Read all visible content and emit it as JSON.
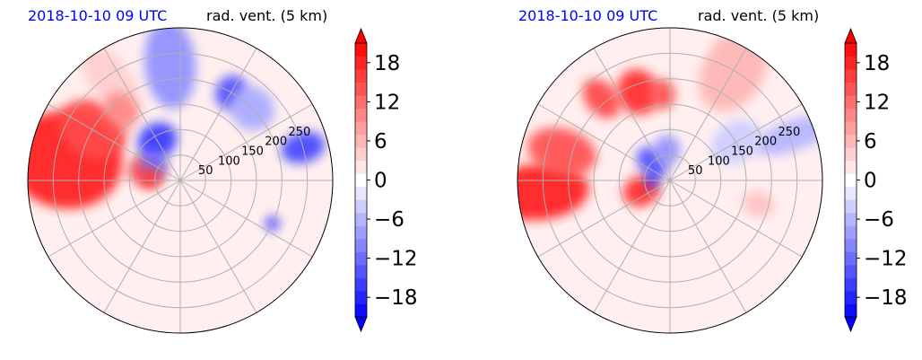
{
  "chart_data": [
    {
      "type": "heatmap",
      "projection": "polar",
      "title_left": "2018-10-10 09 UTC",
      "title_right": "rad. vent. (5 km)",
      "radial_ticks": [
        "50",
        "100",
        "150",
        "200",
        "250"
      ],
      "radial_tick_values": [
        50,
        100,
        150,
        200,
        250
      ],
      "rmax": 300,
      "grid": true,
      "colorbar": {
        "ticks": [
          "18",
          "12",
          "6",
          "0",
          "−6",
          "−12",
          "−18"
        ],
        "tick_values": [
          18,
          12,
          6,
          0,
          -6,
          -12,
          -18
        ],
        "vmin": -21,
        "vmax": 21,
        "extend": "both",
        "cmap": "bwr"
      },
      "fields": [
        {
          "r": 230,
          "theta": 170,
          "rw": 95,
          "tw": 28,
          "v": 18
        },
        {
          "r": 200,
          "theta": 150,
          "rw": 55,
          "tw": 20,
          "v": 15
        },
        {
          "r": 70,
          "theta": 165,
          "rw": 30,
          "tw": 30,
          "v": 14
        },
        {
          "r": 240,
          "theta": 125,
          "rw": 40,
          "tw": 20,
          "v": 4
        },
        {
          "r": 90,
          "theta": 120,
          "rw": 40,
          "tw": 22,
          "v": -16
        },
        {
          "r": 60,
          "theta": 150,
          "rw": 25,
          "tw": 25,
          "v": -12
        },
        {
          "r": 230,
          "theta": 95,
          "rw": 50,
          "tw": 22,
          "v": -9
        },
        {
          "r": 200,
          "theta": 60,
          "rw": 30,
          "tw": 10,
          "v": -14
        },
        {
          "r": 250,
          "theta": 15,
          "rw": 30,
          "tw": 10,
          "v": -15
        },
        {
          "r": 200,
          "theta": 45,
          "rw": 45,
          "tw": 12,
          "v": -7
        },
        {
          "r": 200,
          "theta": -25,
          "rw": 15,
          "tw": 4,
          "v": -15
        },
        {
          "r": 60,
          "theta": 175,
          "rw": 20,
          "tw": 20,
          "v": 16
        },
        {
          "r": 180,
          "theta": 130,
          "rw": 30,
          "tw": 12,
          "v": 10
        }
      ]
    },
    {
      "type": "heatmap",
      "projection": "polar",
      "title_left": "2018-10-10 09 UTC",
      "title_right": "rad. vent. (5 km)",
      "radial_ticks": [
        "50",
        "100",
        "150",
        "200",
        "250"
      ],
      "radial_tick_values": [
        50,
        100,
        150,
        200,
        250
      ],
      "rmax": 300,
      "grid": true,
      "colorbar": {
        "ticks": [
          "18",
          "12",
          "6",
          "0",
          "−6",
          "−12",
          "−18"
        ],
        "tick_values": [
          18,
          12,
          6,
          0,
          -6,
          -12,
          -18
        ],
        "vmin": -21,
        "vmax": 21,
        "extend": "both",
        "cmap": "bwr"
      },
      "fields": [
        {
          "r": 260,
          "theta": 185,
          "rw": 55,
          "tw": 22,
          "v": 18
        },
        {
          "r": 220,
          "theta": 165,
          "rw": 45,
          "tw": 18,
          "v": 14
        },
        {
          "r": 210,
          "theta": 130,
          "rw": 30,
          "tw": 12,
          "v": 15
        },
        {
          "r": 185,
          "theta": 110,
          "rw": 40,
          "tw": 14,
          "v": 17
        },
        {
          "r": 170,
          "theta": 95,
          "rw": 25,
          "tw": 10,
          "v": 14
        },
        {
          "r": 60,
          "theta": 200,
          "rw": 30,
          "tw": 35,
          "v": 17
        },
        {
          "r": 50,
          "theta": 135,
          "rw": 25,
          "tw": 40,
          "v": -14
        },
        {
          "r": 60,
          "theta": 95,
          "rw": 25,
          "tw": 28,
          "v": -9
        },
        {
          "r": 35,
          "theta": 180,
          "rw": 15,
          "tw": 20,
          "v": -17
        },
        {
          "r": 250,
          "theta": 60,
          "rw": 60,
          "tw": 20,
          "v": 6
        },
        {
          "r": 260,
          "theta": 20,
          "rw": 30,
          "tw": 18,
          "v": -6
        },
        {
          "r": 150,
          "theta": 30,
          "rw": 40,
          "tw": 20,
          "v": -4
        },
        {
          "r": 180,
          "theta": -15,
          "rw": 25,
          "tw": 10,
          "v": 5
        }
      ]
    }
  ]
}
